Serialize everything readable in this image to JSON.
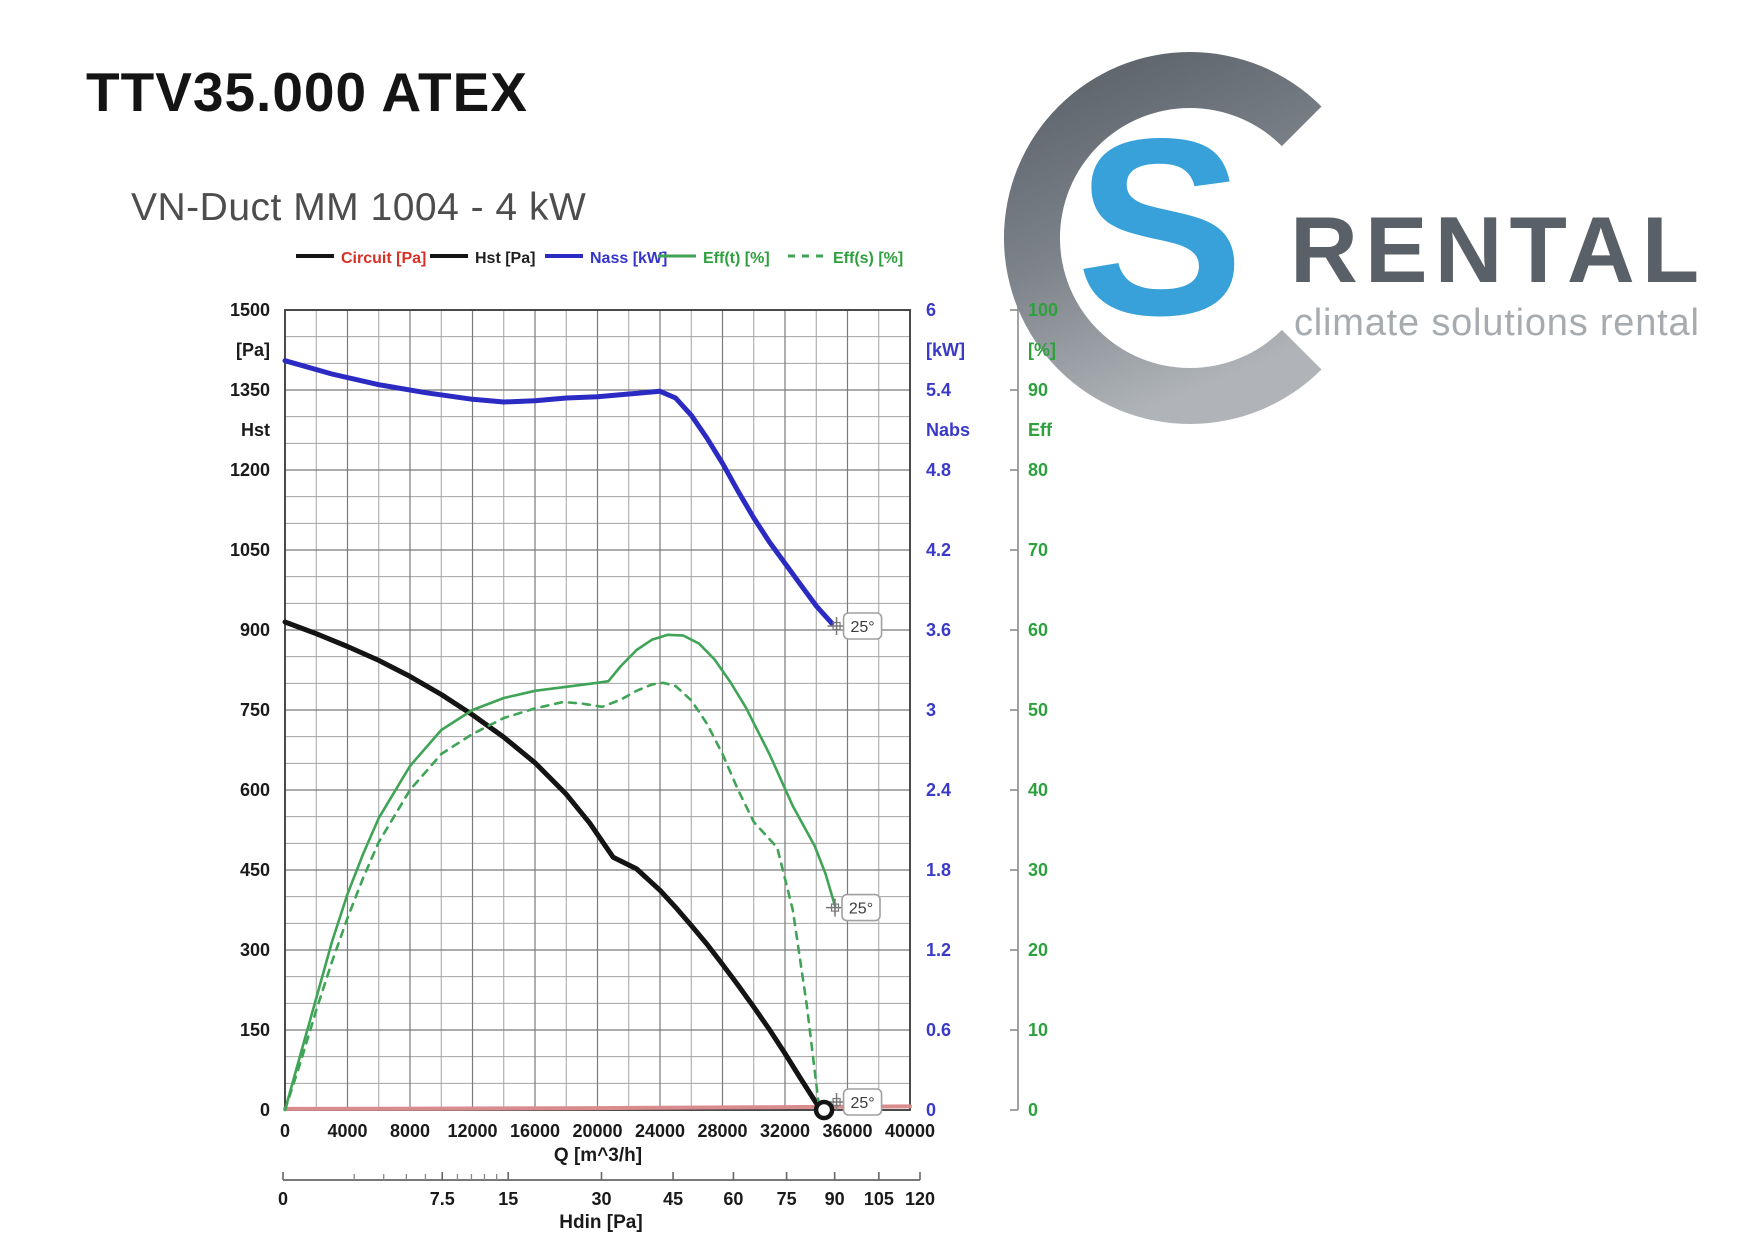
{
  "header": {
    "title": "TTV35.000 ATEX",
    "subtitle": "VN-Duct MM 1004  - 4 kW"
  },
  "logo": {
    "brand": "RENTAL",
    "tagline": "climate solutions rental",
    "c_color_top": "#565c64",
    "c_color_bottom": "#aeb2b6",
    "s_color": "#38a1da"
  },
  "chart_data": {
    "type": "line",
    "x_axis": {
      "title": "Q [m^3/h]",
      "min": 0,
      "max": 40000,
      "minor_step": 2000,
      "ticks": [
        [
          "0",
          0
        ],
        [
          "4000",
          4000
        ],
        [
          "8000",
          8000
        ],
        [
          "12000",
          12000
        ],
        [
          "16000",
          16000
        ],
        [
          "20000",
          20000
        ],
        [
          "24000",
          24000
        ],
        [
          "28000",
          28000
        ],
        [
          "32000",
          32000
        ],
        [
          "36000",
          36000
        ],
        [
          "40000",
          40000
        ]
      ]
    },
    "y_left_axis": {
      "unit": "[Pa]",
      "quantity": "Hst",
      "min": 0,
      "max": 1500,
      "minor_step": 50,
      "ticks": [
        [
          "1500",
          1500
        ],
        [
          "1350",
          1350
        ],
        [
          "1200",
          1200
        ],
        [
          "1050",
          1050
        ],
        [
          "900",
          900
        ],
        [
          "750",
          750
        ],
        [
          "600",
          600
        ],
        [
          "450",
          450
        ],
        [
          "300",
          300
        ],
        [
          "150",
          150
        ],
        [
          "0",
          0
        ]
      ],
      "unit_at": 1425,
      "quantity_at": 1275
    },
    "y_right_kw_axis": {
      "unit": "[kW]",
      "quantity": "Nabs",
      "min": 0,
      "max": 6,
      "ticks": [
        [
          "6",
          6
        ],
        [
          "5.4",
          5.4
        ],
        [
          "4.8",
          4.8
        ],
        [
          "4.2",
          4.2
        ],
        [
          "3.6",
          3.6
        ],
        [
          "3",
          3
        ],
        [
          "2.4",
          2.4
        ],
        [
          "1.8",
          1.8
        ],
        [
          "1.2",
          1.2
        ],
        [
          "0.6",
          0.6
        ],
        [
          "0",
          0
        ]
      ],
      "unit_at": 5.7,
      "quantity_at": 5.1
    },
    "y_right_pct_axis": {
      "unit": "[%]",
      "quantity": "Eff",
      "min": 0,
      "max": 100,
      "ticks": [
        [
          "100",
          100
        ],
        [
          "90",
          90
        ],
        [
          "80",
          80
        ],
        [
          "70",
          70
        ],
        [
          "60",
          60
        ],
        [
          "50",
          50
        ],
        [
          "40",
          40
        ],
        [
          "30",
          30
        ],
        [
          "20",
          20
        ],
        [
          "10",
          10
        ],
        [
          "0",
          0
        ]
      ],
      "unit_at": 95,
      "quantity_at": 85
    },
    "hdin_axis": {
      "title": "Hdin  [Pa]",
      "min": 0,
      "max": 120,
      "scale": "sqrt",
      "ticks": [
        [
          "0",
          0
        ],
        [
          "7.5",
          7.5
        ],
        [
          "15",
          15
        ],
        [
          "30",
          30
        ],
        [
          "45",
          45
        ],
        [
          "60",
          60
        ],
        [
          "75",
          75
        ],
        [
          "90",
          90
        ],
        [
          "105",
          105
        ],
        [
          "120",
          120
        ]
      ],
      "minor_ticks": [
        1.5,
        3,
        4.5,
        6,
        9,
        10.5,
        12,
        13.5
      ]
    },
    "grid": {
      "minor_color": "#a3a3a3",
      "major_color": "#7a7a7a",
      "border_color": "#3a3a3a"
    },
    "series": [
      {
        "name": "Circuit [Pa]",
        "axis": "pa",
        "color": "#d98c8c",
        "width": 4,
        "dash": "",
        "legend_line_color": "#141414",
        "legend_text_color": "#d93025",
        "points": [
          [
            0,
            2
          ],
          [
            10000,
            2.6
          ],
          [
            20000,
            3.6
          ],
          [
            30000,
            5.0
          ],
          [
            40000,
            6.8
          ]
        ]
      },
      {
        "name": "Hst [Pa]",
        "axis": "pa",
        "color": "#141414",
        "width": 5,
        "dash": "",
        "legend_line_color": "#141414",
        "legend_text_color": "#1f1f1f",
        "points": [
          [
            0,
            915
          ],
          [
            2000,
            893
          ],
          [
            4000,
            869
          ],
          [
            6000,
            843
          ],
          [
            8000,
            813
          ],
          [
            10000,
            779
          ],
          [
            12000,
            741
          ],
          [
            14000,
            699
          ],
          [
            16000,
            651
          ],
          [
            18000,
            592
          ],
          [
            19500,
            538
          ],
          [
            21000,
            474
          ],
          [
            22500,
            452
          ],
          [
            24000,
            412
          ],
          [
            25000,
            380
          ],
          [
            26000,
            346
          ],
          [
            27000,
            311
          ],
          [
            28000,
            273
          ],
          [
            29000,
            234
          ],
          [
            30000,
            193
          ],
          [
            31000,
            151
          ],
          [
            32000,
            106
          ],
          [
            33000,
            59
          ],
          [
            34000,
            13
          ],
          [
            34500,
            0
          ]
        ]
      },
      {
        "name": "Nass [kW]",
        "axis": "kw",
        "color": "#2b2bc4",
        "width": 5,
        "dash": "",
        "legend_line_color": "#2b2bc4",
        "legend_text_color": "#3535cc",
        "points": [
          [
            0,
            5.62
          ],
          [
            3000,
            5.52
          ],
          [
            6000,
            5.44
          ],
          [
            9000,
            5.38
          ],
          [
            12000,
            5.33
          ],
          [
            14000,
            5.31
          ],
          [
            16000,
            5.32
          ],
          [
            18000,
            5.34
          ],
          [
            20000,
            5.35
          ],
          [
            22000,
            5.37
          ],
          [
            24000,
            5.39
          ],
          [
            25000,
            5.34
          ],
          [
            26000,
            5.21
          ],
          [
            27000,
            5.04
          ],
          [
            28000,
            4.85
          ],
          [
            29000,
            4.64
          ],
          [
            30000,
            4.44
          ],
          [
            31000,
            4.26
          ],
          [
            32000,
            4.1
          ],
          [
            33000,
            3.94
          ],
          [
            34000,
            3.78
          ],
          [
            35000,
            3.65
          ]
        ]
      },
      {
        "name": "Eff(t) [%]",
        "axis": "pct",
        "color": "#3fa456",
        "width": 2.6,
        "dash": "",
        "legend_line_color": "#3fa456",
        "legend_text_color": "#2ea13e",
        "points": [
          [
            0,
            0
          ],
          [
            1000,
            7
          ],
          [
            2000,
            14
          ],
          [
            3000,
            21
          ],
          [
            4000,
            27
          ],
          [
            5000,
            32
          ],
          [
            6000,
            36.5
          ],
          [
            8000,
            43
          ],
          [
            10000,
            47.5
          ],
          [
            12000,
            50
          ],
          [
            14000,
            51.5
          ],
          [
            16000,
            52.4
          ],
          [
            18000,
            52.9
          ],
          [
            20000,
            53.4
          ],
          [
            20700,
            53.6
          ],
          [
            21500,
            55.5
          ],
          [
            22500,
            57.5
          ],
          [
            23500,
            58.8
          ],
          [
            24500,
            59.4
          ],
          [
            25500,
            59.3
          ],
          [
            26500,
            58.3
          ],
          [
            27500,
            56.3
          ],
          [
            28500,
            53.5
          ],
          [
            29500,
            50.3
          ],
          [
            31000,
            44.5
          ],
          [
            32500,
            38
          ],
          [
            33900,
            33
          ],
          [
            34600,
            29.5
          ],
          [
            35200,
            25.5
          ]
        ]
      },
      {
        "name": "Eff(s) [%]",
        "axis": "pct",
        "color": "#3fa456",
        "width": 2.6,
        "dash": "7 7",
        "legend_line_color": "#3fa456",
        "legend_text_color": "#2ea13e",
        "points": [
          [
            0,
            0
          ],
          [
            1000,
            6
          ],
          [
            2000,
            12.5
          ],
          [
            3000,
            18.5
          ],
          [
            4000,
            24
          ],
          [
            5000,
            29
          ],
          [
            6000,
            33.5
          ],
          [
            8000,
            40
          ],
          [
            10000,
            44.5
          ],
          [
            12000,
            47
          ],
          [
            14000,
            49
          ],
          [
            16000,
            50.2
          ],
          [
            17800,
            51
          ],
          [
            19000,
            50.8
          ],
          [
            20300,
            50.4
          ],
          [
            21500,
            51.3
          ],
          [
            22500,
            52.4
          ],
          [
            23500,
            53.2
          ],
          [
            24200,
            53.4
          ],
          [
            25000,
            53
          ],
          [
            26000,
            51.2
          ],
          [
            27000,
            48.3
          ],
          [
            28000,
            44.5
          ],
          [
            29000,
            40
          ],
          [
            30000,
            36
          ],
          [
            31500,
            32.8
          ],
          [
            32500,
            25
          ],
          [
            33400,
            13
          ],
          [
            34200,
            0
          ]
        ]
      }
    ],
    "annotations": [
      {
        "label": "25°",
        "q": 35300,
        "v": 3.63,
        "axis": "kw"
      },
      {
        "label": "25°",
        "q": 35200,
        "v": 25.3,
        "axis": "pct"
      },
      {
        "label": "25°",
        "q": 35300,
        "v": 15,
        "axis": "pa"
      }
    ],
    "operating_point": {
      "q": 34500,
      "hst_pa": 0
    }
  }
}
